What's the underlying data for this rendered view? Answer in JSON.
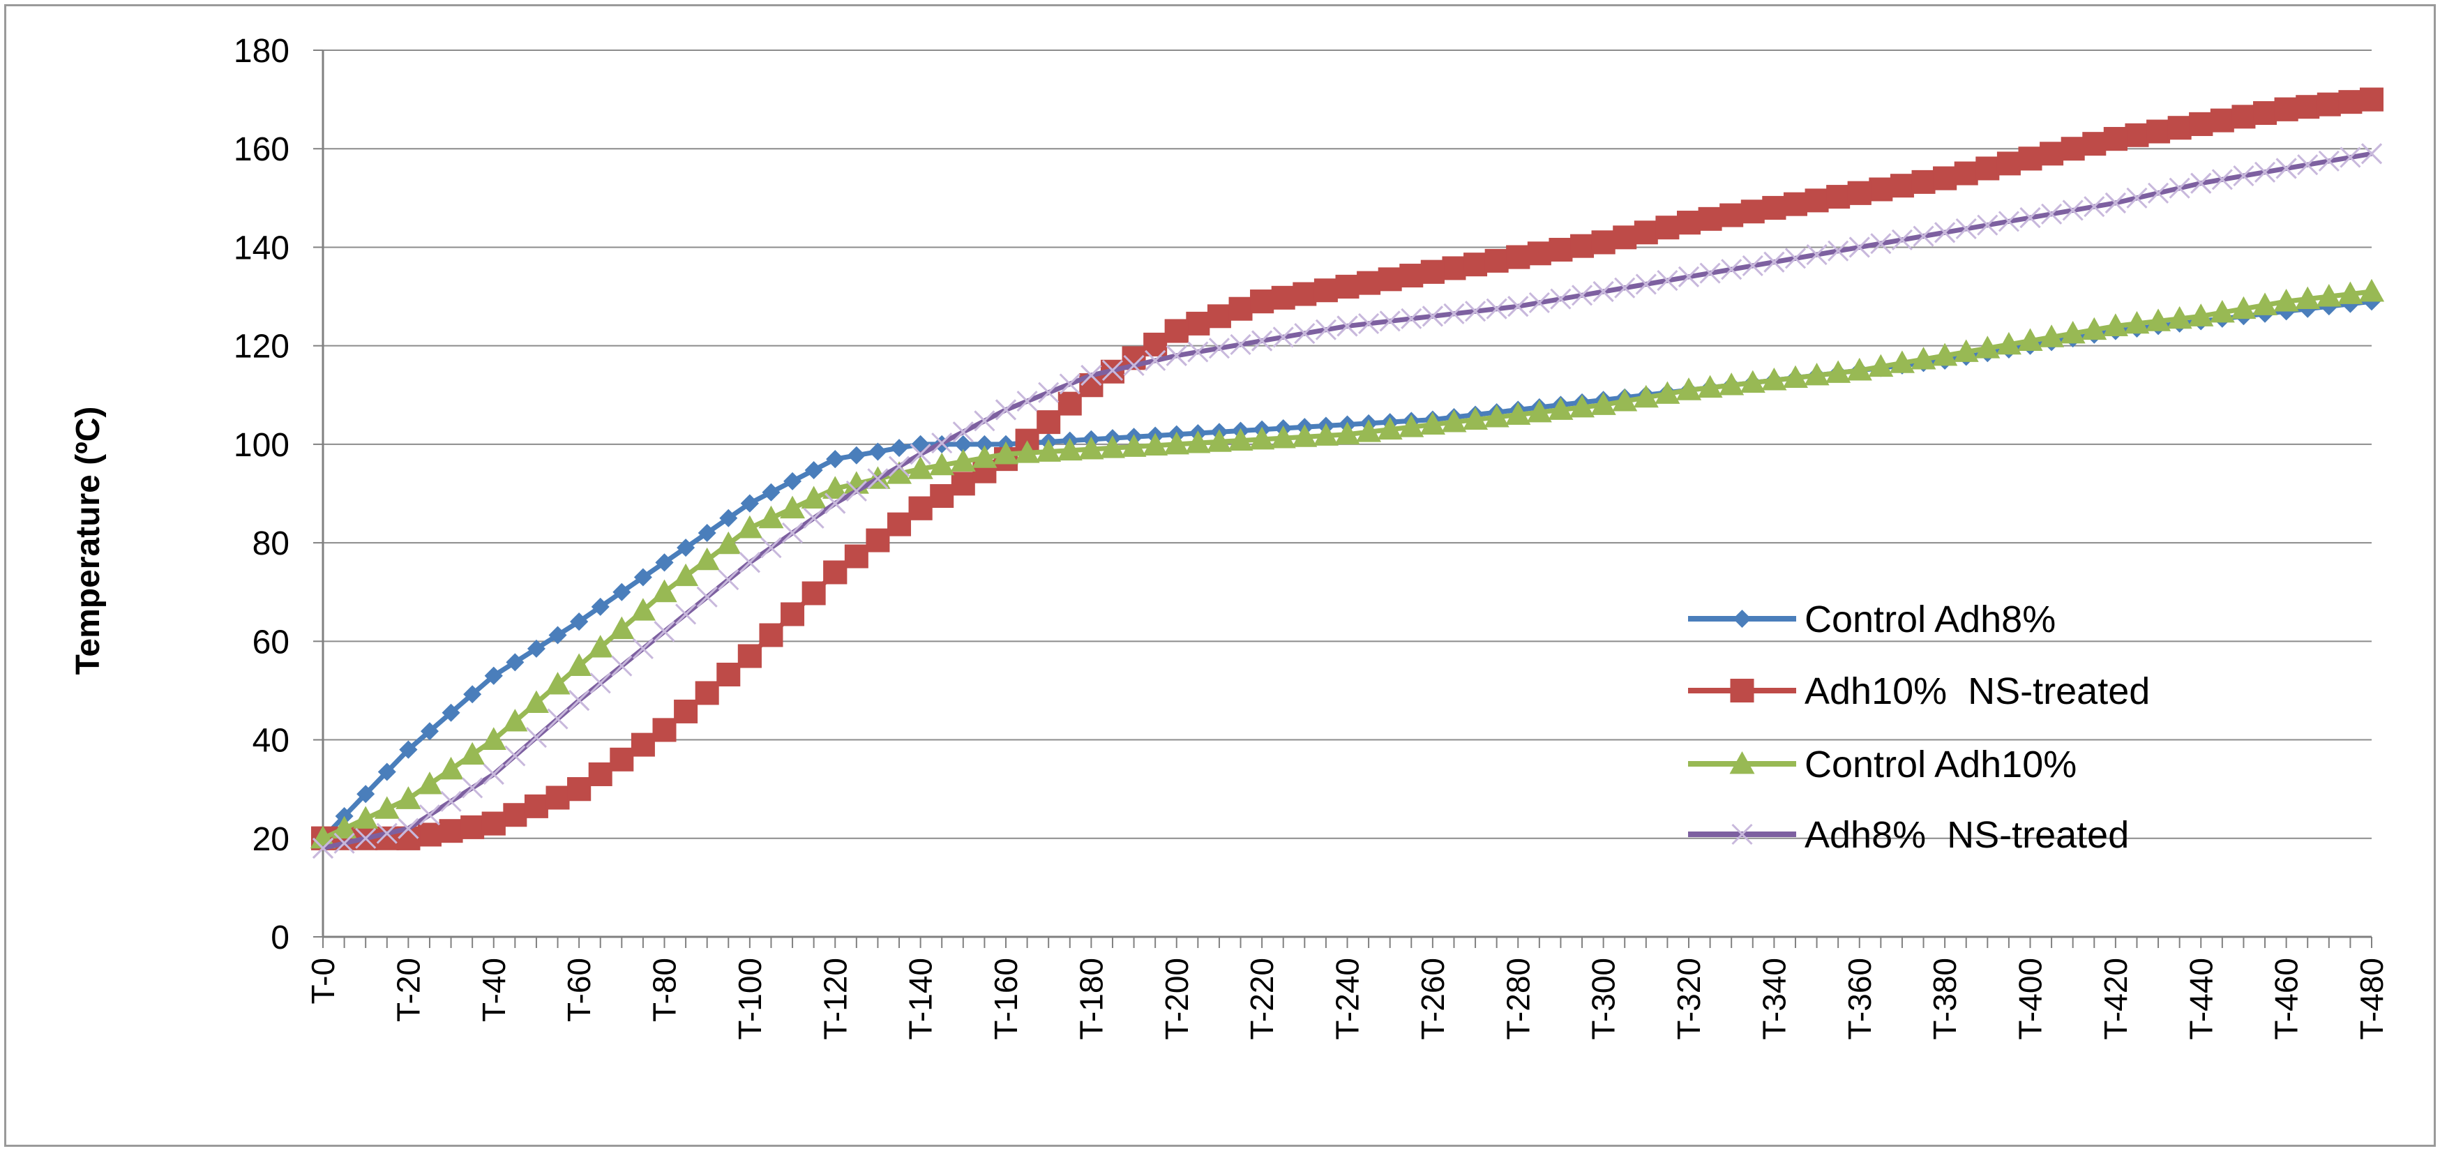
{
  "chart_data": {
    "type": "line",
    "title": "",
    "xlabel": "",
    "ylabel": "Temperature (ºC)",
    "ylim": [
      0,
      180
    ],
    "y_ticks": [
      "0",
      "20",
      "40",
      "60",
      "80",
      "100",
      "120",
      "140",
      "160",
      "180"
    ],
    "x_tick_labels": [
      "T-0",
      "T-20",
      "T-40",
      "T-60",
      "T-80",
      "T-100",
      "T-120",
      "T-140",
      "T-160",
      "T-180",
      "T-200",
      "T-220",
      "T-240",
      "T-260",
      "T-280",
      "T-300",
      "T-320",
      "T-340",
      "T-360",
      "T-380",
      "T-400",
      "T-420",
      "T-440",
      "T-460",
      "T-480"
    ],
    "x": [
      0,
      20,
      40,
      60,
      80,
      100,
      120,
      140,
      160,
      180,
      200,
      220,
      240,
      260,
      280,
      300,
      320,
      340,
      360,
      380,
      400,
      420,
      440,
      460,
      480
    ],
    "grid": "horizontal",
    "legend_position": "right",
    "series": [
      {
        "name": "Control Adh8%",
        "color": "#4a7ebb",
        "marker": "diamond",
        "values": [
          20,
          38,
          53,
          64,
          76,
          88,
          97,
          100,
          100,
          101,
          102,
          103,
          104,
          105,
          107,
          109,
          111,
          113,
          115,
          117,
          120,
          123,
          125,
          127,
          129
        ]
      },
      {
        "name": "Adh10%  NS-treated",
        "color": "#be4b48",
        "marker": "square",
        "values": [
          20,
          20,
          23,
          30,
          42,
          57,
          74,
          87,
          97,
          112,
          123,
          129,
          132,
          135,
          138,
          141,
          145,
          148,
          151,
          154,
          158,
          162,
          165,
          168,
          170
        ]
      },
      {
        "name": "Control Adh10%",
        "color": "#98b954",
        "marker": "triangle",
        "values": [
          20,
          28,
          40,
          55,
          70,
          83,
          91,
          95,
          98,
          99,
          100,
          101,
          102,
          104,
          106,
          108,
          111,
          113,
          115,
          118,
          121,
          124,
          126,
          129,
          131
        ]
      },
      {
        "name": "Adh8%  NS-treated",
        "color": "#7d60a0",
        "marker": "x",
        "values": [
          18,
          22,
          33,
          48,
          62,
          76,
          88,
          98,
          107,
          114,
          118,
          121,
          124,
          126,
          128,
          131,
          134,
          137,
          140,
          143,
          146,
          149,
          153,
          156,
          159
        ]
      }
    ]
  }
}
